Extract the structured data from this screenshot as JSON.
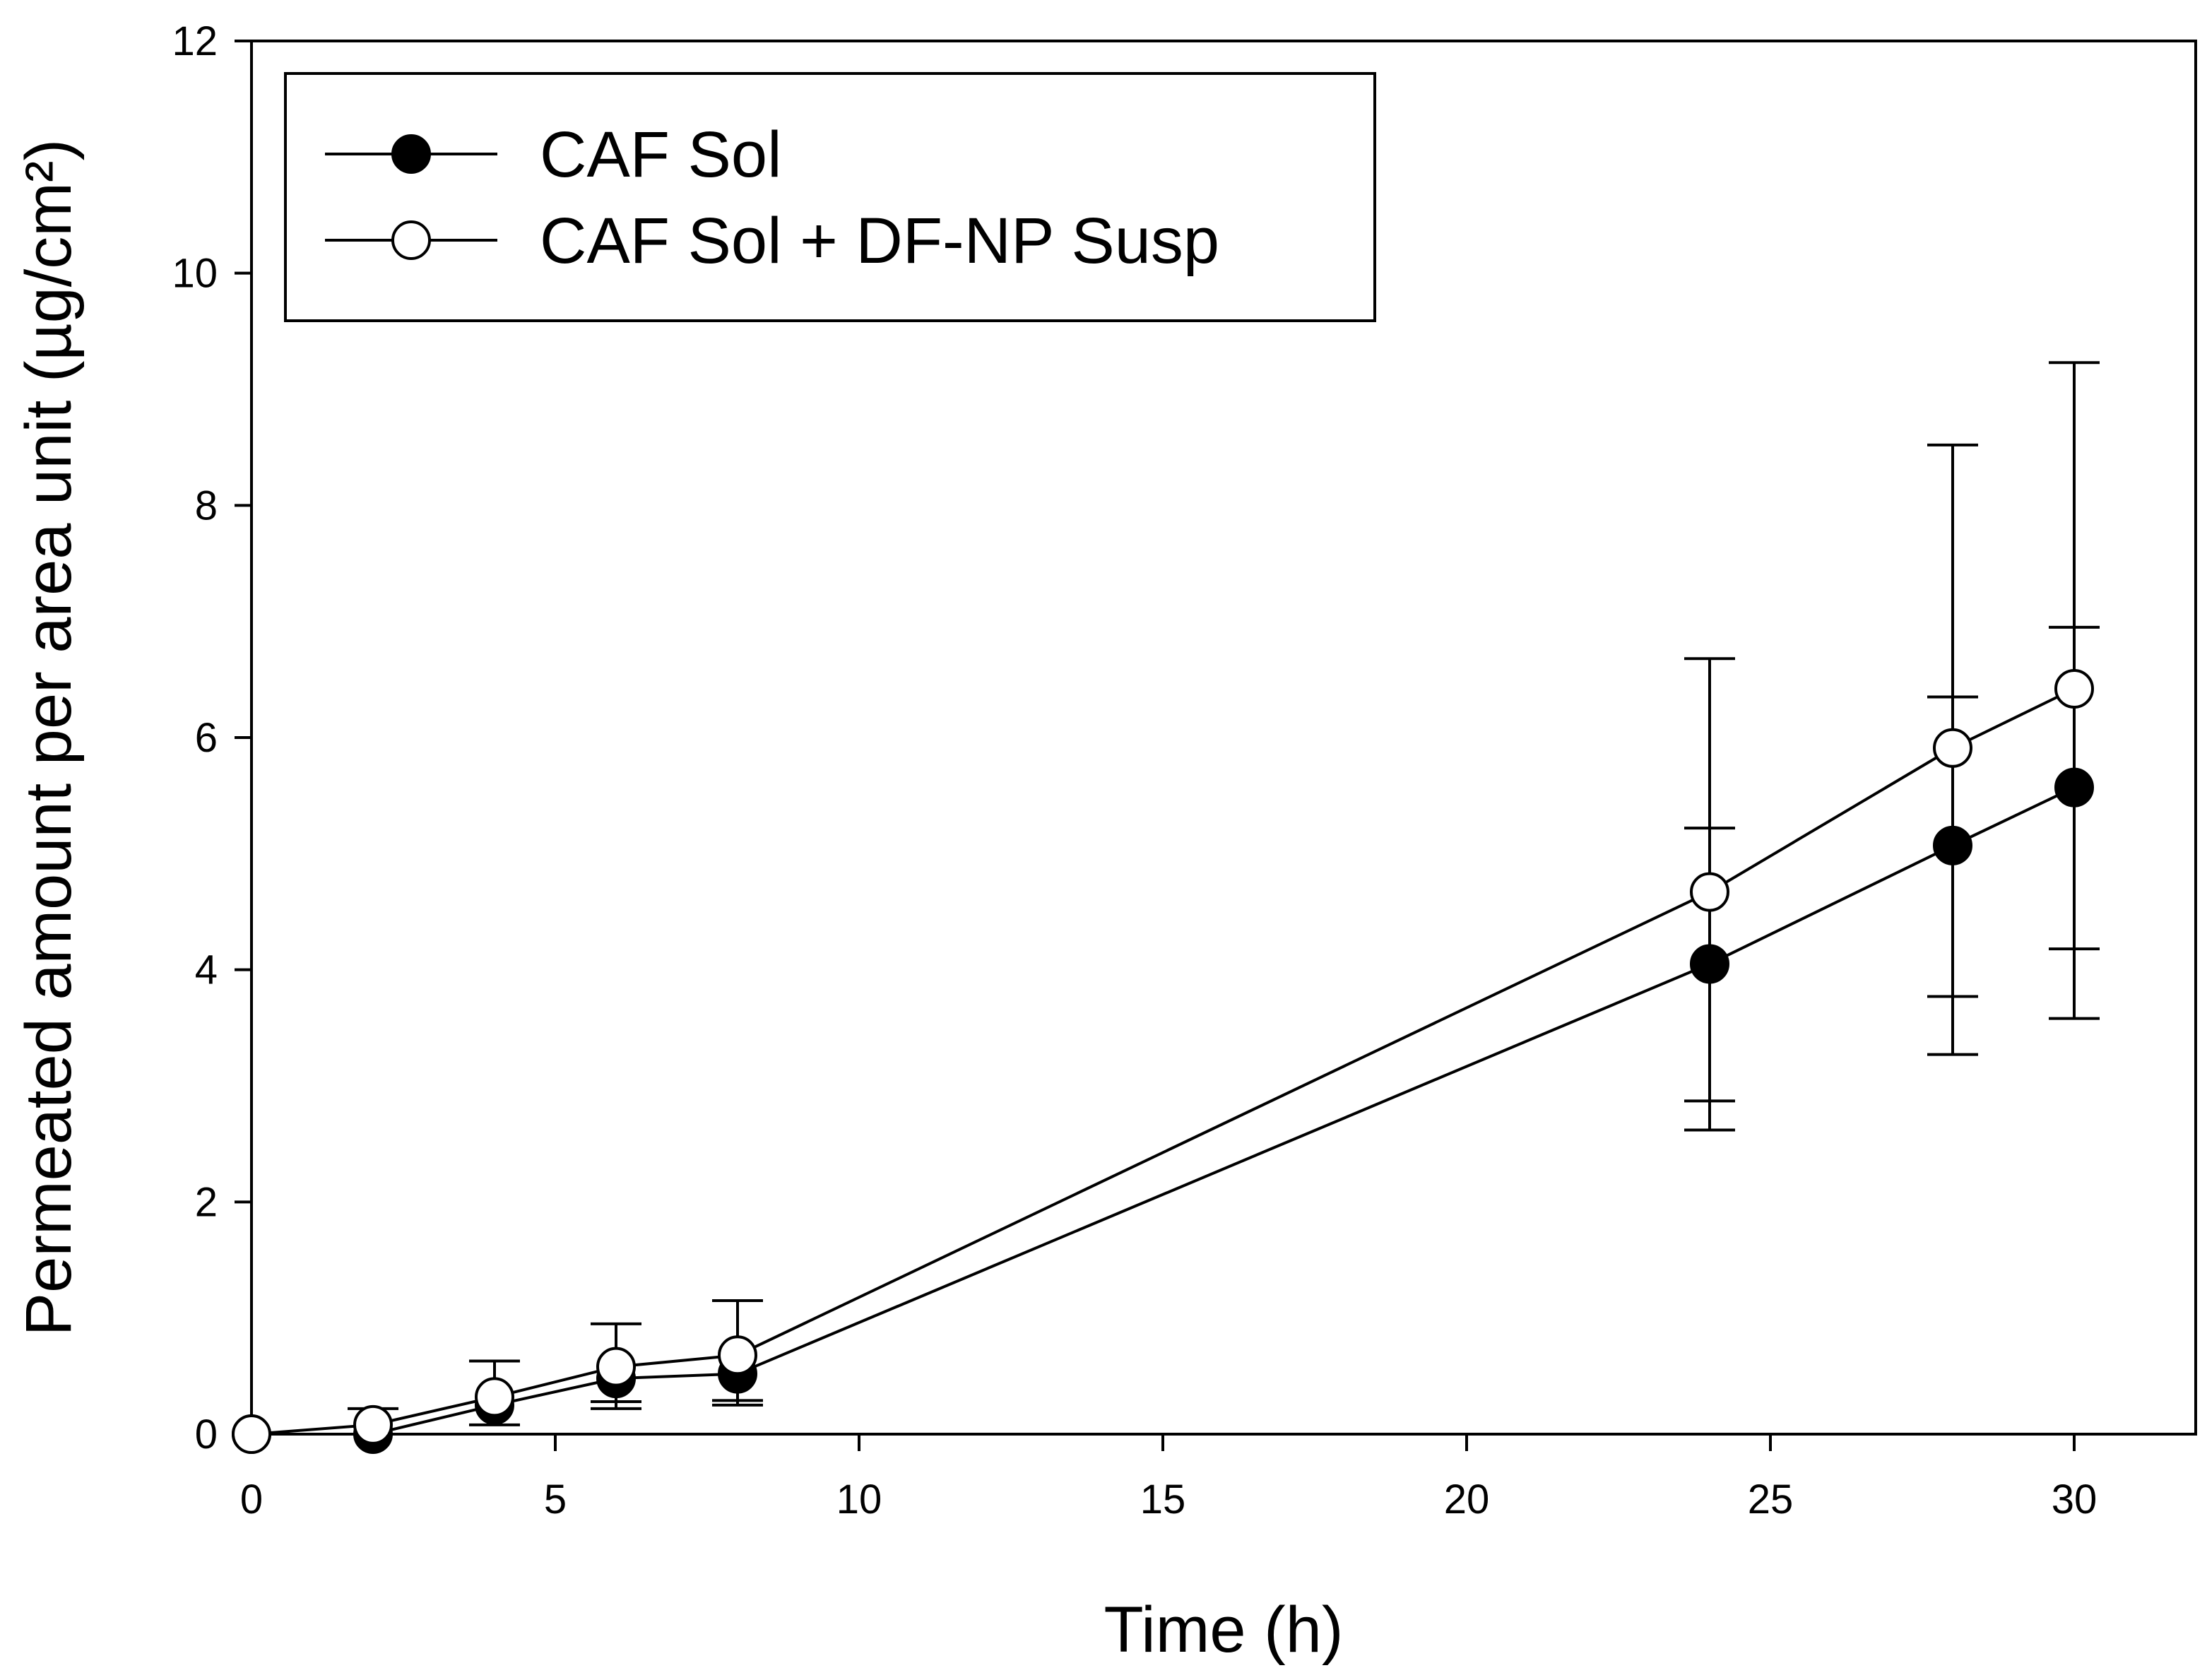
{
  "chart_data": {
    "type": "line",
    "title": "",
    "xlabel": "Time (h)",
    "ylabel": "Permeated amount per area unit (µg/cm²)",
    "xlim": [
      0,
      32
    ],
    "ylim": [
      0,
      12
    ],
    "xticks": [
      0,
      5,
      10,
      15,
      20,
      25,
      30
    ],
    "yticks": [
      0,
      2,
      4,
      6,
      8,
      10,
      12
    ],
    "x_tick_labels": [
      "0",
      "5",
      "10",
      "15",
      "20",
      "25",
      "30"
    ],
    "y_tick_labels": [
      "0",
      "2",
      "4",
      "6",
      "8",
      "10",
      "12"
    ],
    "grid": false,
    "legend_position": "top-left",
    "series": [
      {
        "name": "CAF Sol",
        "marker": "filled-circle",
        "color": "#000000",
        "points": [
          {
            "x": 0,
            "y": 0,
            "lo": null,
            "hi": null
          },
          {
            "x": 2,
            "y": 0.0,
            "lo": null,
            "hi": null
          },
          {
            "x": 4,
            "y": 0.25,
            "lo": 0.08,
            "hi": null
          },
          {
            "x": 6,
            "y": 0.48,
            "lo": 0.28,
            "hi": null
          },
          {
            "x": 8,
            "y": 0.52,
            "lo": 0.25,
            "hi": null
          },
          {
            "x": 24,
            "y": 4.05,
            "lo": 2.62,
            "hi": 5.22
          },
          {
            "x": 28,
            "y": 5.07,
            "lo": 3.27,
            "hi": 6.35
          },
          {
            "x": 30,
            "y": 5.57,
            "lo": 3.58,
            "hi": 6.95
          }
        ]
      },
      {
        "name": "CAF Sol + DF-NP Susp",
        "marker": "open-circle",
        "color": "#000000",
        "points": [
          {
            "x": 0,
            "y": 0,
            "lo": null,
            "hi": null
          },
          {
            "x": 2,
            "y": 0.08,
            "lo": null,
            "hi": 0.22
          },
          {
            "x": 4,
            "y": 0.32,
            "lo": null,
            "hi": 0.63
          },
          {
            "x": 6,
            "y": 0.58,
            "lo": 0.22,
            "hi": 0.95
          },
          {
            "x": 8,
            "y": 0.68,
            "lo": 0.29,
            "hi": 1.15
          },
          {
            "x": 24,
            "y": 4.67,
            "lo": 2.87,
            "hi": 6.68
          },
          {
            "x": 28,
            "y": 5.91,
            "lo": 3.77,
            "hi": 8.52
          },
          {
            "x": 30,
            "y": 6.42,
            "lo": 4.18,
            "hi": 9.23
          }
        ]
      }
    ]
  }
}
